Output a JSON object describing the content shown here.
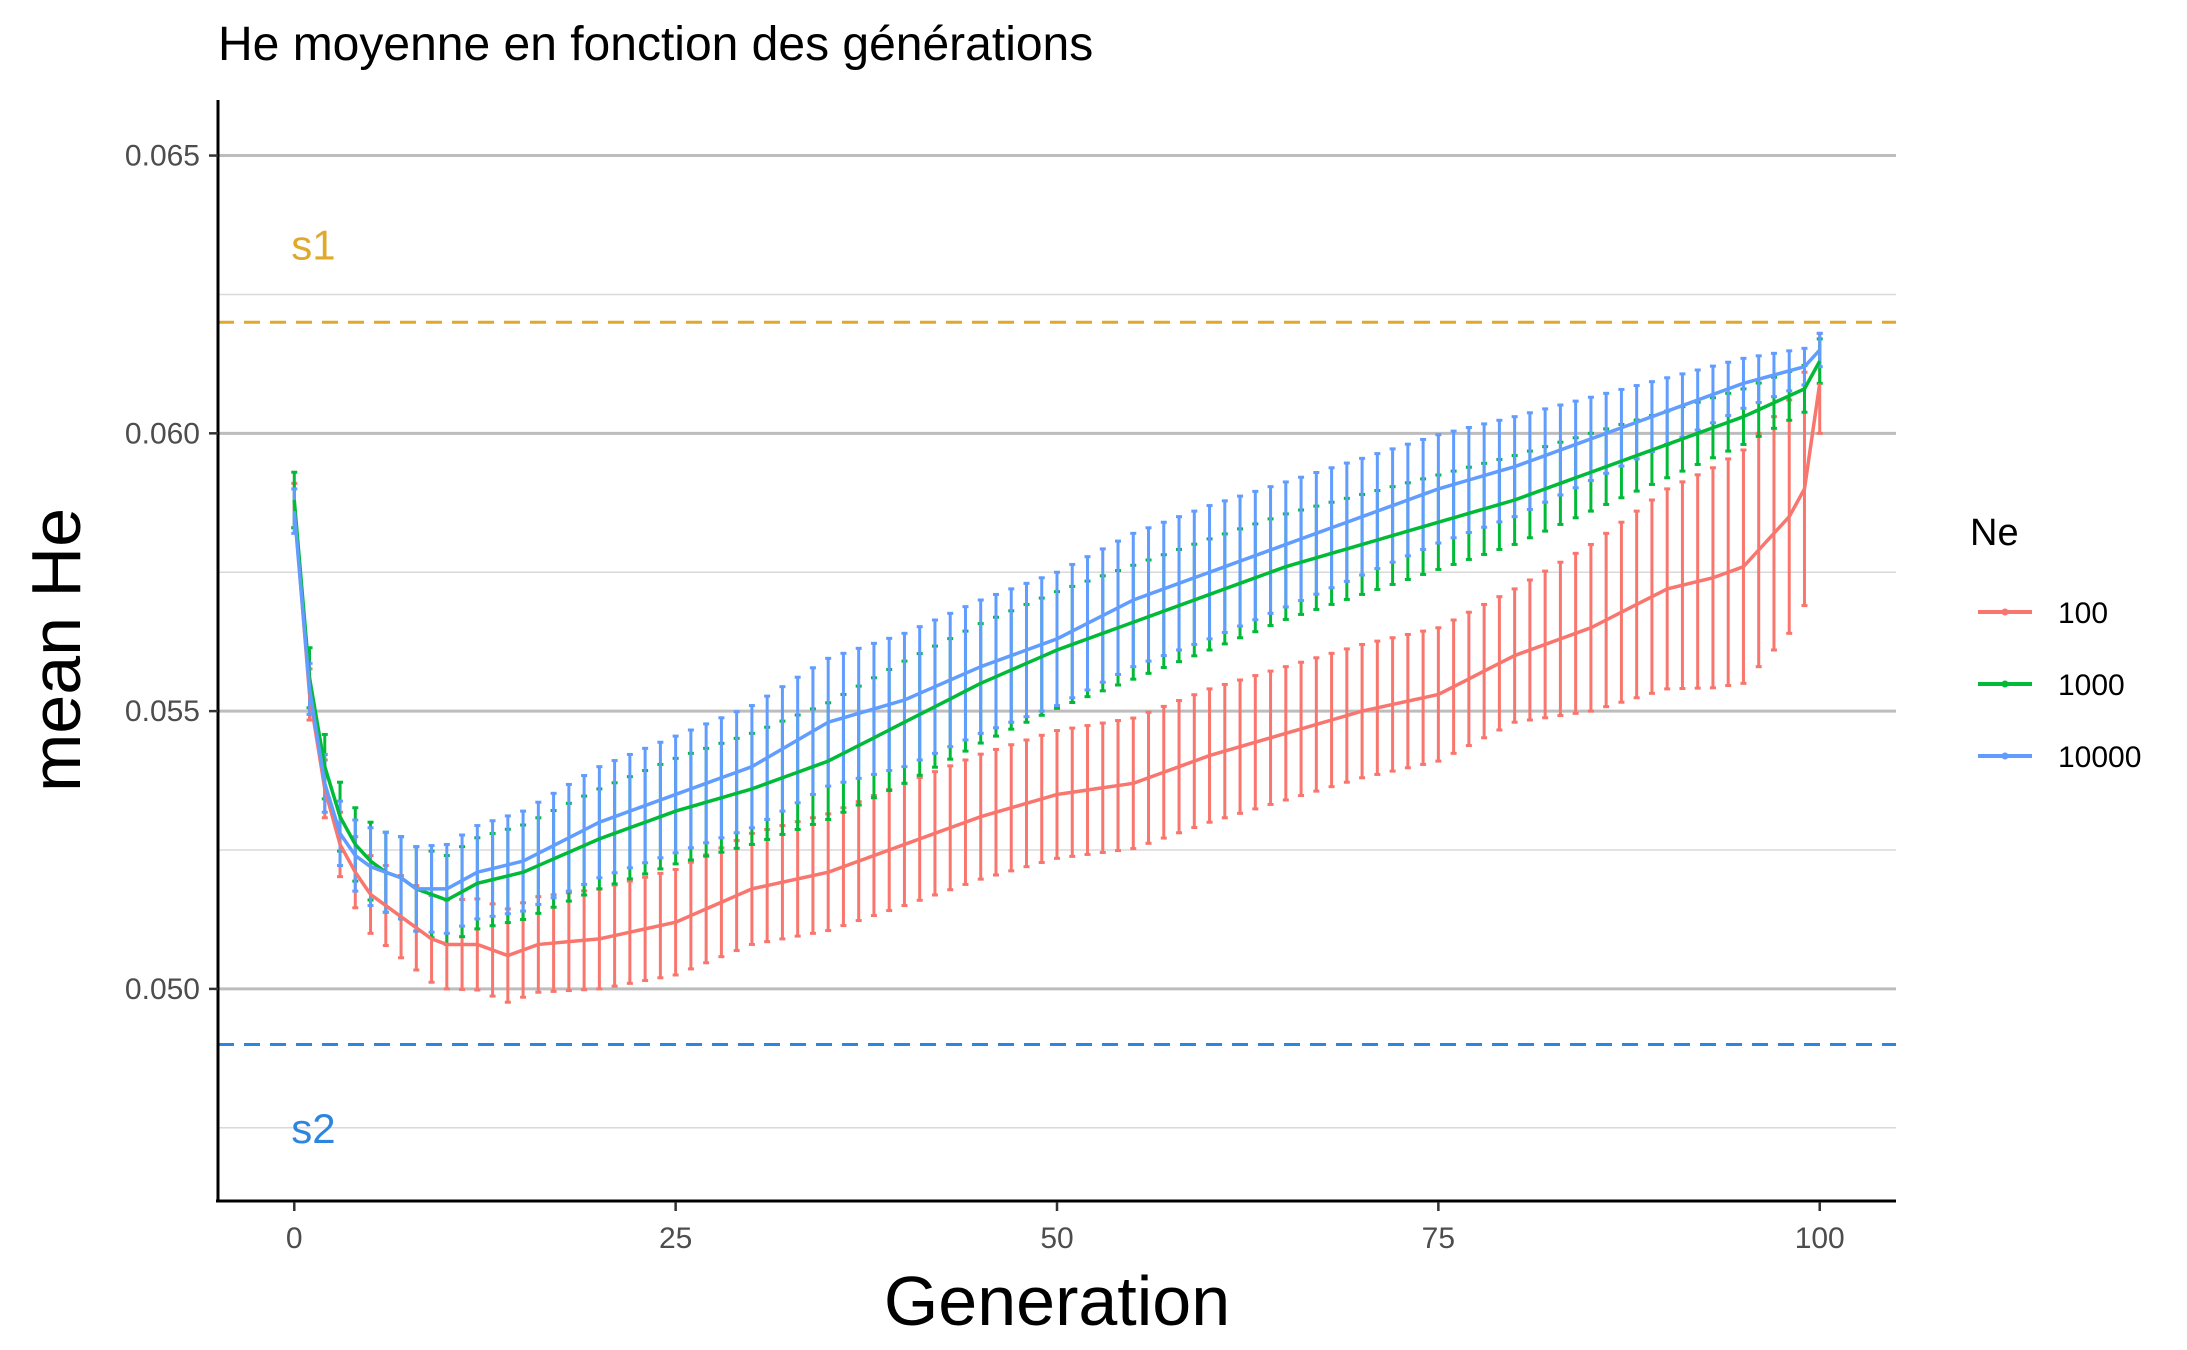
{
  "chart_data": {
    "type": "line",
    "title": "He moyenne en fonction des générations",
    "xlabel": "Generation",
    "ylabel": "mean He",
    "xlim": [
      -5,
      105
    ],
    "ylim": [
      0.0462,
      0.066
    ],
    "x_ticks": [
      0,
      25,
      50,
      75,
      100
    ],
    "y_ticks": [
      0.05,
      0.055,
      0.06,
      0.065
    ],
    "y_tick_labels": [
      "0.050",
      "0.055",
      "0.060",
      "0.065"
    ],
    "grid": true,
    "legend": {
      "title": "Ne",
      "position": "right"
    },
    "reference_lines": [
      {
        "label": "s1",
        "y": 0.062,
        "color": "#E0A92E",
        "label_y": 0.0634
      },
      {
        "label": "s2",
        "y": 0.049,
        "color": "#2C86E0",
        "label_y": 0.0475
      }
    ],
    "series_anchors": [
      {
        "name": "100",
        "color": "#F8766D",
        "points": [
          [
            0,
            0.0587
          ],
          [
            1,
            0.0553
          ],
          [
            2,
            0.0536
          ],
          [
            3,
            0.0526
          ],
          [
            4,
            0.0521
          ],
          [
            5,
            0.0517
          ],
          [
            6,
            0.0515
          ],
          [
            7,
            0.0513
          ],
          [
            8,
            0.0511
          ],
          [
            9,
            0.0509
          ],
          [
            10,
            0.0508
          ],
          [
            12,
            0.0508
          ],
          [
            14,
            0.0506
          ],
          [
            16,
            0.0508
          ],
          [
            20,
            0.0509
          ],
          [
            25,
            0.0512
          ],
          [
            30,
            0.0518
          ],
          [
            35,
            0.0521
          ],
          [
            40,
            0.0526
          ],
          [
            45,
            0.0531
          ],
          [
            50,
            0.0535
          ],
          [
            55,
            0.0537
          ],
          [
            60,
            0.0542
          ],
          [
            65,
            0.0546
          ],
          [
            70,
            0.055
          ],
          [
            75,
            0.0553
          ],
          [
            80,
            0.056
          ],
          [
            85,
            0.0565
          ],
          [
            90,
            0.0572
          ],
          [
            93,
            0.0574
          ],
          [
            95,
            0.0576
          ],
          [
            97,
            0.0582
          ],
          [
            98,
            0.0585
          ],
          [
            99,
            0.059
          ],
          [
            100,
            0.0609
          ]
        ],
        "error": [
          [
            0,
            0.0004
          ],
          [
            5,
            0.0007
          ],
          [
            10,
            0.0008
          ],
          [
            20,
            0.0009
          ],
          [
            40,
            0.0011
          ],
          [
            60,
            0.0012
          ],
          [
            80,
            0.0012
          ],
          [
            95,
            0.0021
          ],
          [
            99,
            0.0021
          ],
          [
            100,
            0.0009
          ]
        ]
      },
      {
        "name": "1000",
        "color": "#00BA38",
        "points": [
          [
            0,
            0.0588
          ],
          [
            1,
            0.0556
          ],
          [
            2,
            0.054
          ],
          [
            3,
            0.0531
          ],
          [
            4,
            0.0526
          ],
          [
            5,
            0.0523
          ],
          [
            6,
            0.0521
          ],
          [
            7,
            0.052
          ],
          [
            8,
            0.0518
          ],
          [
            9,
            0.0517
          ],
          [
            10,
            0.0516
          ],
          [
            12,
            0.0519
          ],
          [
            15,
            0.0521
          ],
          [
            20,
            0.0527
          ],
          [
            25,
            0.0532
          ],
          [
            30,
            0.0536
          ],
          [
            35,
            0.0541
          ],
          [
            40,
            0.0548
          ],
          [
            45,
            0.0555
          ],
          [
            50,
            0.0561
          ],
          [
            55,
            0.0566
          ],
          [
            60,
            0.0571
          ],
          [
            65,
            0.0576
          ],
          [
            70,
            0.058
          ],
          [
            75,
            0.0584
          ],
          [
            80,
            0.0588
          ],
          [
            85,
            0.0593
          ],
          [
            90,
            0.0598
          ],
          [
            95,
            0.0603
          ],
          [
            99,
            0.0608
          ],
          [
            100,
            0.0613
          ]
        ],
        "error": [
          [
            0,
            0.0005
          ],
          [
            5,
            0.0007
          ],
          [
            10,
            0.0008
          ],
          [
            20,
            0.0009
          ],
          [
            40,
            0.0011
          ],
          [
            60,
            0.001
          ],
          [
            80,
            0.0008
          ],
          [
            100,
            0.0004
          ]
        ]
      },
      {
        "name": "10000",
        "color": "#619CFF",
        "points": [
          [
            0,
            0.0586
          ],
          [
            1,
            0.0554
          ],
          [
            2,
            0.0537
          ],
          [
            3,
            0.0528
          ],
          [
            4,
            0.0524
          ],
          [
            5,
            0.0522
          ],
          [
            6,
            0.0521
          ],
          [
            7,
            0.052
          ],
          [
            8,
            0.0518
          ],
          [
            9,
            0.0518
          ],
          [
            10,
            0.0518
          ],
          [
            12,
            0.0521
          ],
          [
            15,
            0.0523
          ],
          [
            20,
            0.053
          ],
          [
            25,
            0.0535
          ],
          [
            30,
            0.054
          ],
          [
            35,
            0.0548
          ],
          [
            40,
            0.0552
          ],
          [
            45,
            0.0558
          ],
          [
            50,
            0.0563
          ],
          [
            55,
            0.057
          ],
          [
            60,
            0.0575
          ],
          [
            65,
            0.058
          ],
          [
            70,
            0.0585
          ],
          [
            75,
            0.059
          ],
          [
            80,
            0.0594
          ],
          [
            85,
            0.0599
          ],
          [
            90,
            0.0604
          ],
          [
            95,
            0.0609
          ],
          [
            99,
            0.0612
          ],
          [
            100,
            0.0615
          ]
        ],
        "error": [
          [
            0,
            0.0004
          ],
          [
            5,
            0.0007
          ],
          [
            10,
            0.0008
          ],
          [
            20,
            0.001
          ],
          [
            40,
            0.0012
          ],
          [
            60,
            0.0012
          ],
          [
            80,
            0.0009
          ],
          [
            100,
            0.0003
          ]
        ]
      }
    ]
  }
}
